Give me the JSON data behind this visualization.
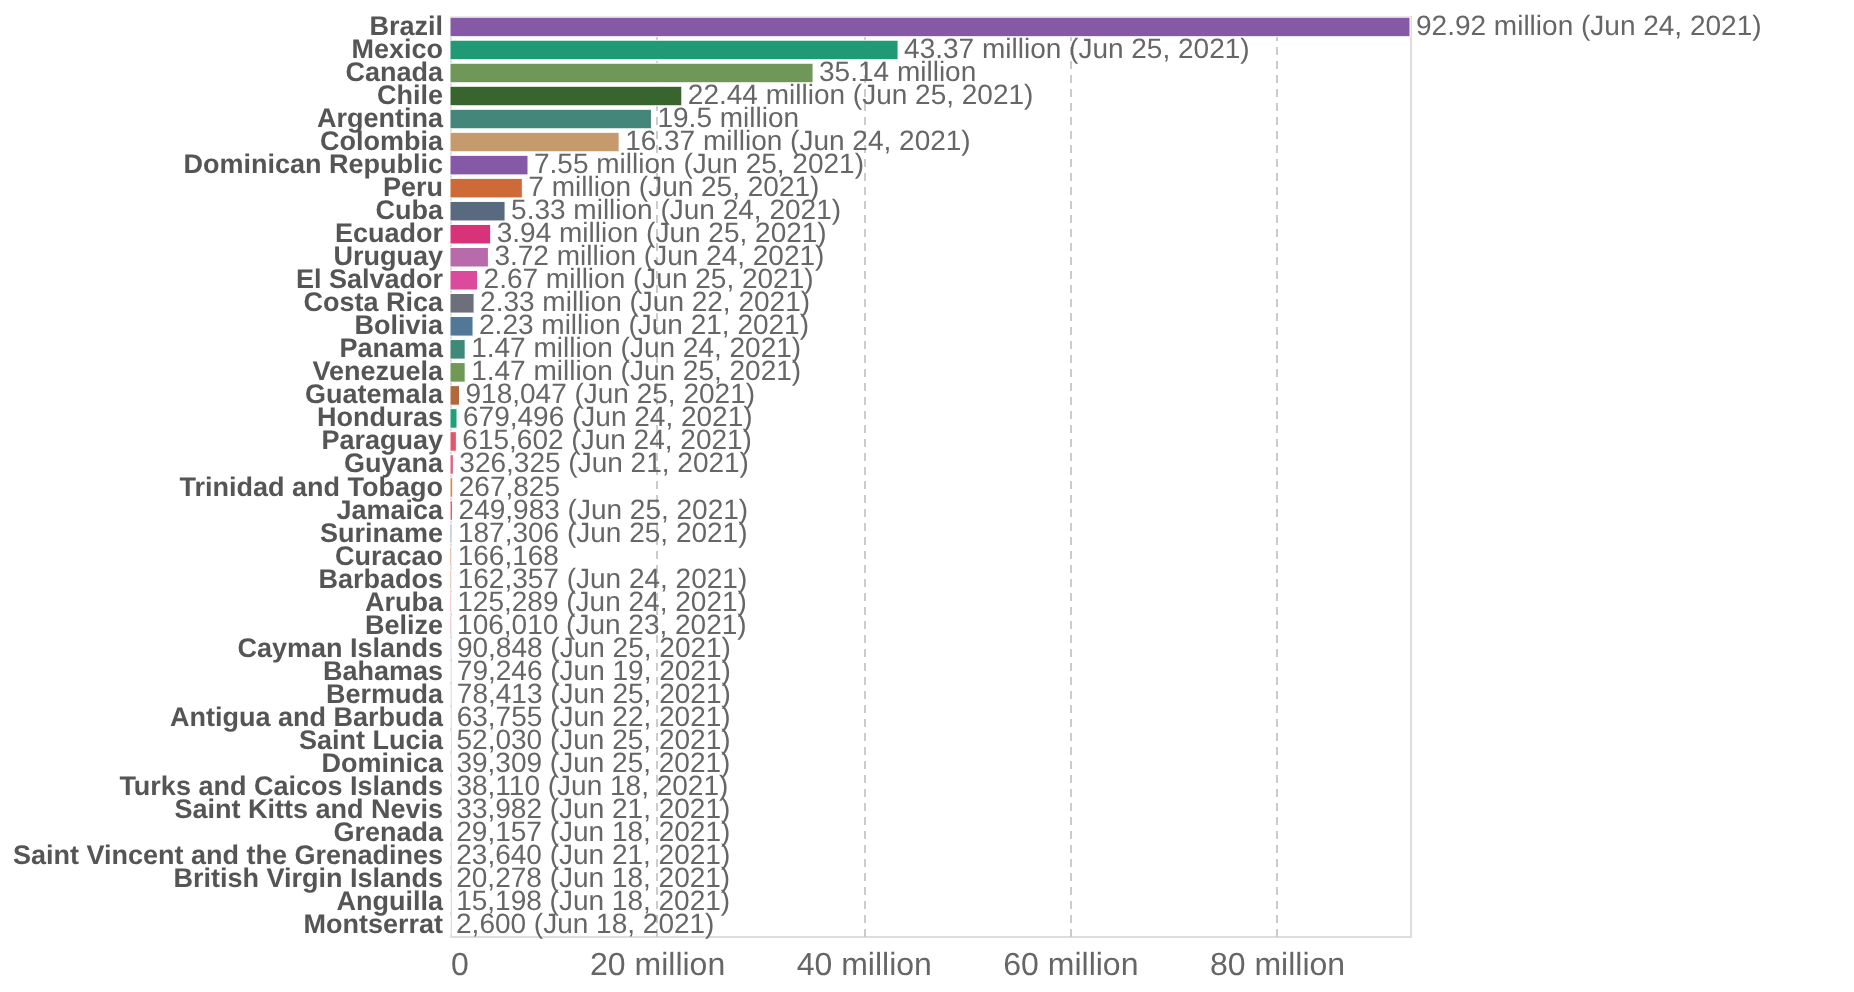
{
  "chart_data": {
    "type": "bar",
    "orientation": "horizontal",
    "categories": [
      "Brazil",
      "Mexico",
      "Canada",
      "Chile",
      "Argentina",
      "Colombia",
      "Dominican Republic",
      "Peru",
      "Cuba",
      "Ecuador",
      "Uruguay",
      "El Salvador",
      "Costa Rica",
      "Bolivia",
      "Panama",
      "Venezuela",
      "Guatemala",
      "Honduras",
      "Paraguay",
      "Guyana",
      "Trinidad and Tobago",
      "Jamaica",
      "Suriname",
      "Curacao",
      "Barbados",
      "Aruba",
      "Belize",
      "Cayman Islands",
      "Bahamas",
      "Bermuda",
      "Antigua and Barbuda",
      "Saint Lucia",
      "Dominica",
      "Turks and Caicos Islands",
      "Saint Kitts and Nevis",
      "Grenada",
      "Saint Vincent and the Grenadines",
      "British Virgin Islands",
      "Anguilla",
      "Montserrat"
    ],
    "values": [
      92920000,
      43370000,
      35140000,
      22440000,
      19500000,
      16370000,
      7550000,
      7000000,
      5330000,
      3940000,
      3720000,
      2670000,
      2330000,
      2230000,
      1470000,
      1470000,
      918047,
      679496,
      615602,
      326325,
      267825,
      249983,
      187306,
      166168,
      162357,
      125289,
      106010,
      90848,
      79246,
      78413,
      63755,
      52030,
      39309,
      38110,
      33982,
      29157,
      23640,
      20278,
      15198,
      2600
    ],
    "colors": [
      "#8559a5",
      "#1f9a74",
      "#6f9858",
      "#38642d",
      "#44877a",
      "#c59b6d",
      "#8559a5",
      "#cd6a37",
      "#586a80",
      "#d83378",
      "#b86aab",
      "#dc4a9e",
      "#6d6f7a",
      "#527898",
      "#3d8a78",
      "#6e9a55",
      "#b0683c",
      "#20a07a",
      "#e0566a",
      "#e0607a",
      "#d58a4a",
      "#e0607a",
      "#90a4c4",
      "#d08a6a",
      "#d0a080",
      "#e080b0",
      "#d06080",
      "#90a4c4",
      "#c59b6d",
      "#b86aab",
      "#6f9858",
      "#44877a",
      "#8559a5",
      "#cd6a37",
      "#527898",
      "#dc4a9e",
      "#586a80",
      "#d83378",
      "#1f9a74",
      "#e0566a"
    ],
    "value_labels": [
      "92.92 million (Jun 24, 2021)",
      "43.37 million (Jun 25, 2021)",
      "35.14 million",
      "22.44 million (Jun 25, 2021)",
      "19.5 million",
      "16.37 million (Jun 24, 2021)",
      "7.55 million (Jun 25, 2021)",
      "7 million (Jun 25, 2021)",
      "5.33 million (Jun 24, 2021)",
      "3.94 million (Jun 25, 2021)",
      "3.72 million (Jun 24, 2021)",
      "2.67 million (Jun 25, 2021)",
      "2.33 million (Jun 22, 2021)",
      "2.23 million (Jun 21, 2021)",
      "1.47 million (Jun 24, 2021)",
      "1.47 million (Jun 25, 2021)",
      "918,047 (Jun 25, 2021)",
      "679,496 (Jun 24, 2021)",
      "615,602 (Jun 24, 2021)",
      "326,325 (Jun 21, 2021)",
      "267,825",
      "249,983 (Jun 25, 2021)",
      "187,306 (Jun 25, 2021)",
      "166,168",
      "162,357 (Jun 24, 2021)",
      "125,289 (Jun 24, 2021)",
      "106,010 (Jun 23, 2021)",
      "90,848 (Jun 25, 2021)",
      "79,246 (Jun 19, 2021)",
      "78,413 (Jun 25, 2021)",
      "63,755 (Jun 22, 2021)",
      "52,030 (Jun 25, 2021)",
      "39,309 (Jun 25, 2021)",
      "38,110 (Jun 18, 2021)",
      "33,982 (Jun 21, 2021)",
      "29,157 (Jun 18, 2021)",
      "23,640 (Jun 21, 2021)",
      "20,278 (Jun 18, 2021)",
      "15,198 (Jun 18, 2021)",
      "2,600 (Jun 18, 2021)"
    ],
    "xlim": [
      0,
      92920000
    ],
    "xticks": [
      0,
      {
        "value": 20000000,
        "label": "20 million"
      },
      {
        "value": 40000000,
        "label": "40 million"
      },
      {
        "value": 60000000,
        "label": "60 million"
      },
      {
        "value": 80000000,
        "label": "80 million"
      }
    ],
    "grid": "x"
  }
}
